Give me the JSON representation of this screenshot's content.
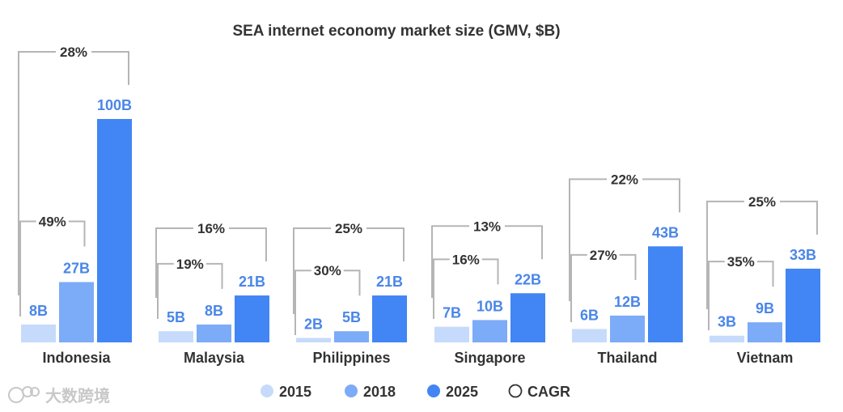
{
  "chart_data": {
    "type": "bar",
    "title": "SEA internet economy market size (GMV, $B)",
    "categories": [
      "Indonesia",
      "Malaysia",
      "Philippines",
      "Singapore",
      "Thailand",
      "Vietnam"
    ],
    "series": [
      {
        "name": "2015",
        "values": [
          8,
          5,
          2,
          7,
          6,
          3
        ],
        "labels": [
          "8B",
          "5B",
          "2B",
          "7B",
          "6B",
          "3B"
        ],
        "color": "#c6dbfb"
      },
      {
        "name": "2018",
        "values": [
          27,
          8,
          5,
          10,
          12,
          9
        ],
        "labels": [
          "27B",
          "8B",
          "5B",
          "10B",
          "12B",
          "9B"
        ],
        "color": "#7cabf7"
      },
      {
        "name": "2025",
        "values": [
          100,
          21,
          21,
          22,
          43,
          33
        ],
        "labels": [
          "100B",
          "21B",
          "21B",
          "22B",
          "43B",
          "33B"
        ],
        "color": "#4285f4"
      }
    ],
    "cagr_2015_2018": [
      "49%",
      "19%",
      "30%",
      "16%",
      "27%",
      "35%"
    ],
    "cagr_2015_2025": [
      "28%",
      "16%",
      "25%",
      "13%",
      "22%",
      "25%"
    ],
    "legend": [
      {
        "label": "2015",
        "color": "#c6dbfb",
        "style": "filled"
      },
      {
        "label": "2018",
        "color": "#7cabf7",
        "style": "filled"
      },
      {
        "label": "2025",
        "color": "#4285f4",
        "style": "filled"
      },
      {
        "label": "CAGR",
        "color": "#333333",
        "style": "outline"
      }
    ],
    "legend_position": "bottom",
    "label_color": "#4a86e8",
    "bracket_color": "#b5b5b5",
    "ylim": [
      0,
      100
    ],
    "grid": false
  },
  "watermark": {
    "text": "大数跨境"
  }
}
